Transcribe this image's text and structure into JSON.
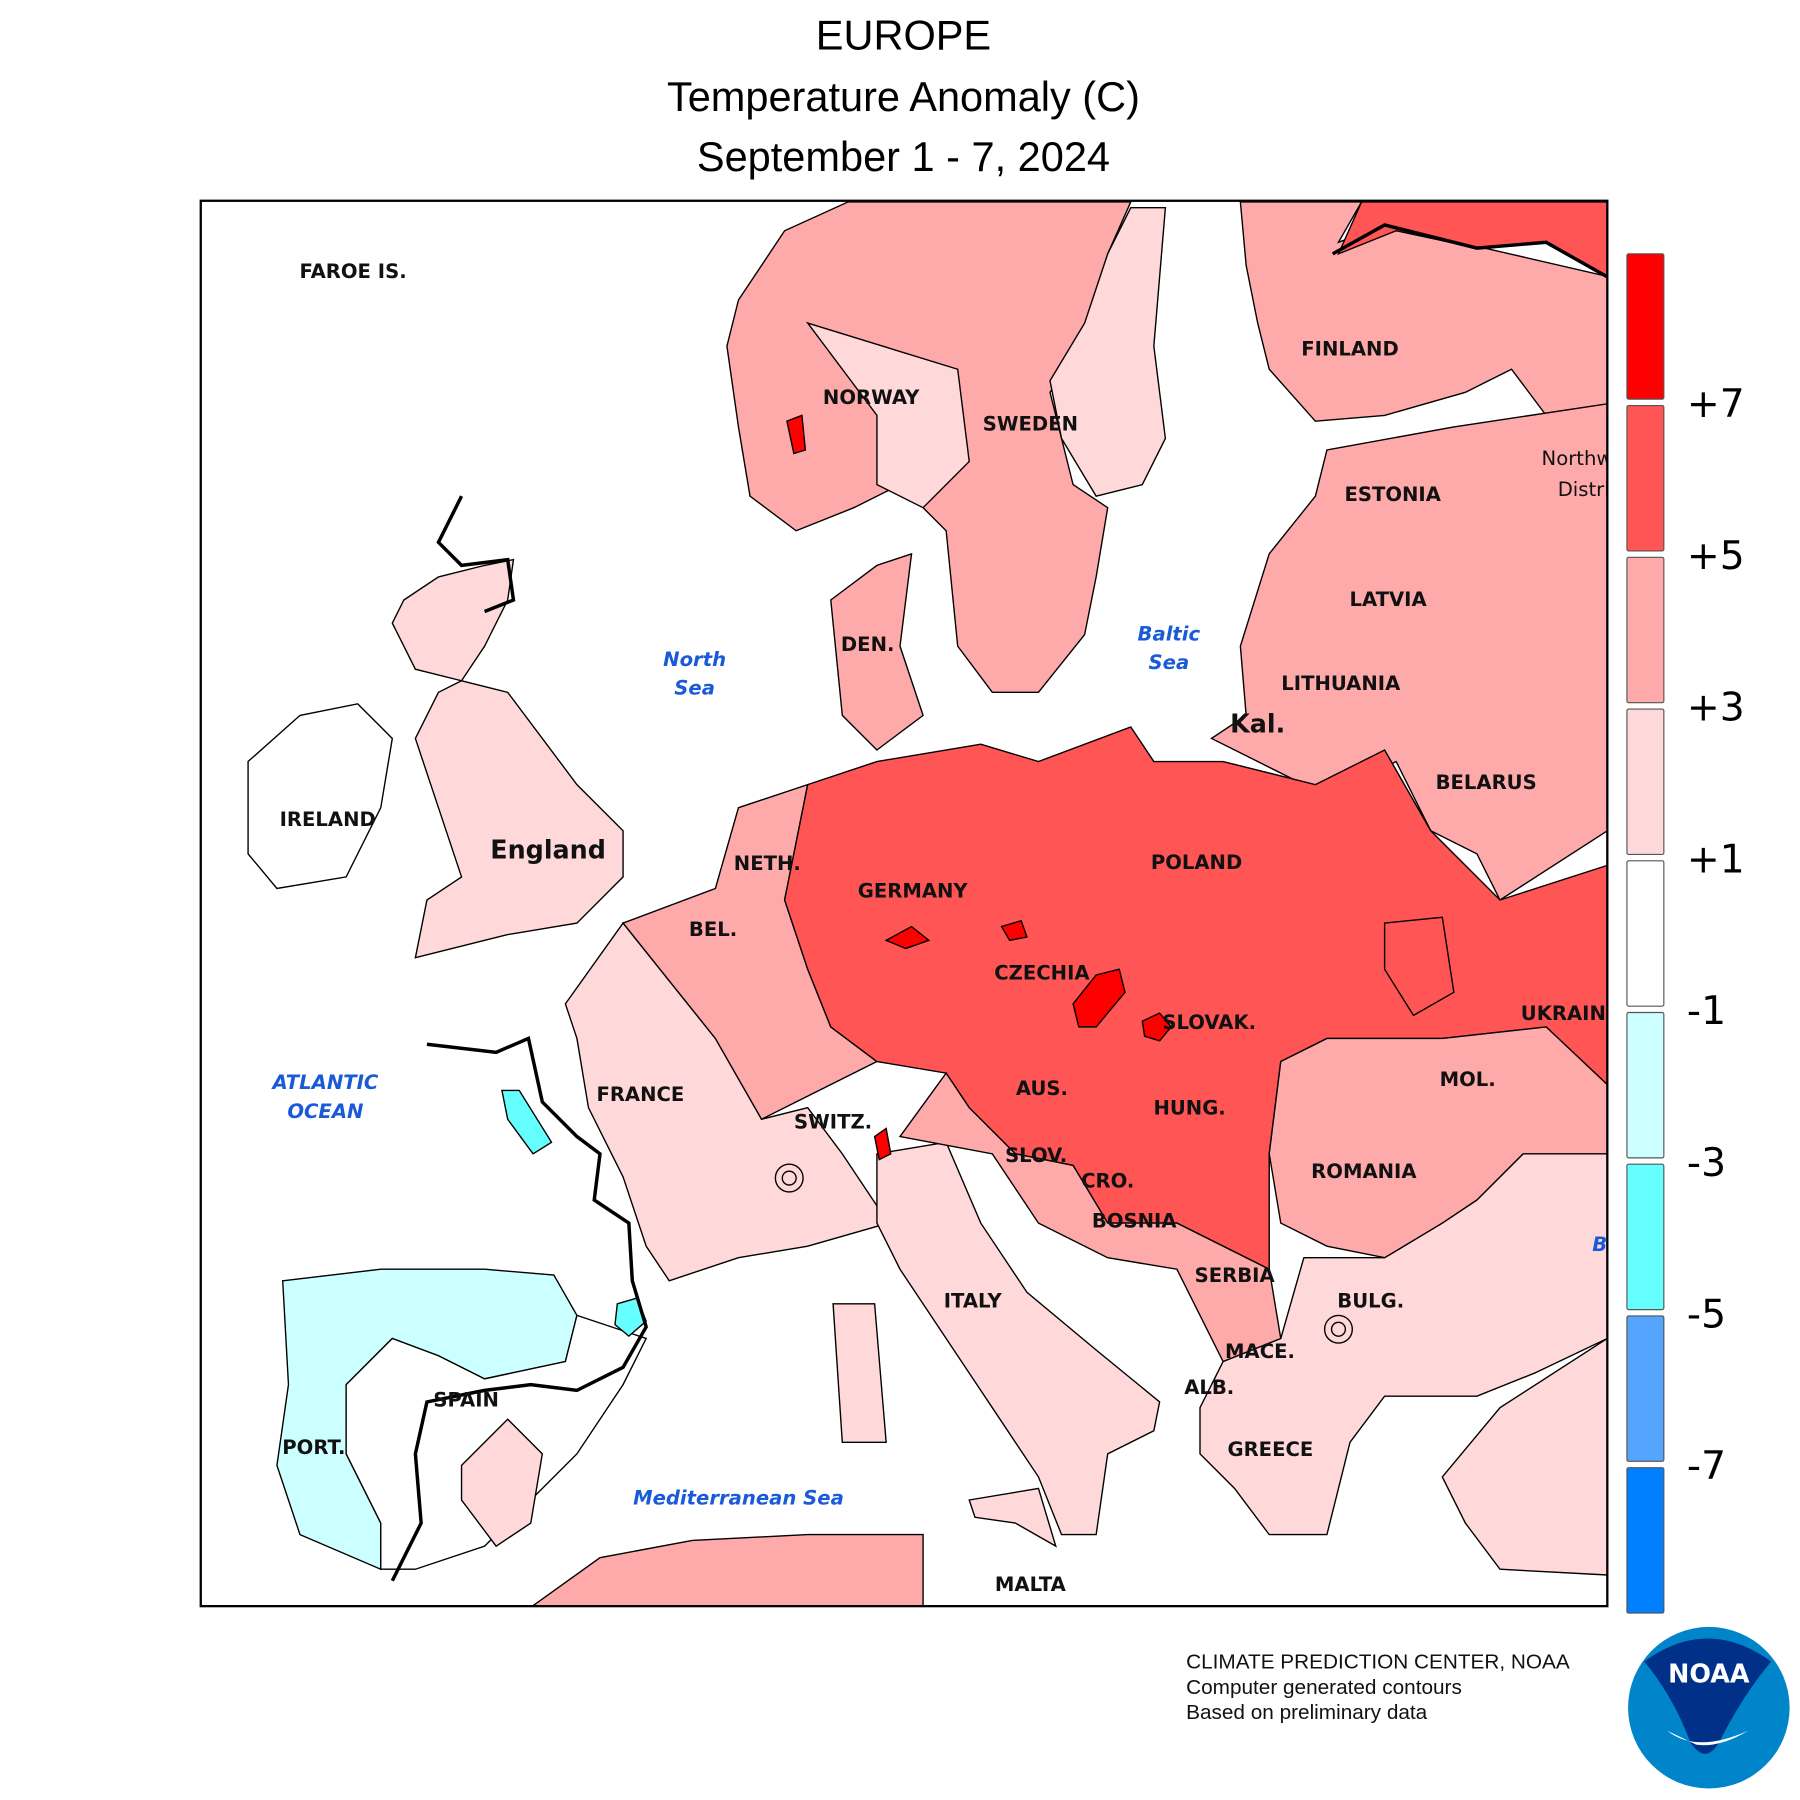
{
  "title": {
    "line1": "EUROPE",
    "line2": "Temperature Anomaly (C)",
    "line3": "September 1 - 7, 2024"
  },
  "legend": {
    "boxes": [
      {
        "range": "> +7",
        "color": "#ff0000"
      },
      {
        "range": "+5 to +7",
        "color": "#ff5555"
      },
      {
        "range": "+3 to +5",
        "color": "#ffaaaa"
      },
      {
        "range": "+1 to +3",
        "color": "#ffd9d9"
      },
      {
        "range": "-1 to +1",
        "color": "#ffffff"
      },
      {
        "range": "-3 to -1",
        "color": "#ccffff"
      },
      {
        "range": "-5 to -3",
        "color": "#66ffff"
      },
      {
        "range": "-7 to -5",
        "color": "#55a5ff"
      },
      {
        "range": "< -7",
        "color": "#0080ff"
      }
    ],
    "ticks": [
      "+7",
      "+5",
      "+3",
      "+1",
      "-1",
      "-3",
      "-5",
      "-7"
    ]
  },
  "map": {
    "countries": {
      "faroe": "FAROE IS.",
      "norway": "NORWAY",
      "sweden": "SWEDEN",
      "finland": "FINLAND",
      "estonia": "ESTONIA",
      "latvia": "LATVIA",
      "lithuania": "LITHUANIA",
      "kal": "Kal.",
      "belarus": "BELARUS",
      "northwest1": "Northw",
      "northwest2": "Distri",
      "den": "DEN.",
      "ireland": "IRELAND",
      "england": "England",
      "neth": "NETH.",
      "germany": "GERMANY",
      "poland": "POLAND",
      "bel": "BEL.",
      "czechia": "CZECHIA",
      "slovak": "SLOVAK.",
      "ukraine": "UKRAIN",
      "france": "FRANCE",
      "aus": "AUS.",
      "switz": "SWITZ.",
      "hung": "HUNG.",
      "mol": "MOL.",
      "slov": "SLOV.",
      "romania": "ROMANIA",
      "cro": "CRO.",
      "bosnia": "BOSNIA",
      "serbia": "SERBIA",
      "italy": "ITALY",
      "bulg": "BULG.",
      "mace": "MACE.",
      "alb": "ALB.",
      "spain": "SPAIN",
      "port": "PORT.",
      "greece": "GREECE",
      "malta": "MALTA"
    },
    "seas": {
      "north1": "North",
      "north2": "Sea",
      "baltic1": "Baltic",
      "baltic2": "Sea",
      "atlantic1": "ATLANTIC",
      "atlantic2": "OCEAN",
      "med": "Mediterranean Sea",
      "black": "B"
    }
  },
  "footer": {
    "line1": "CLIMATE PREDICTION CENTER, NOAA",
    "line2": "Computer generated contours",
    "line3": "Based on preliminary data"
  },
  "logo": {
    "text": "NOAA",
    "dark": "#003087",
    "light": "#0085ca"
  }
}
